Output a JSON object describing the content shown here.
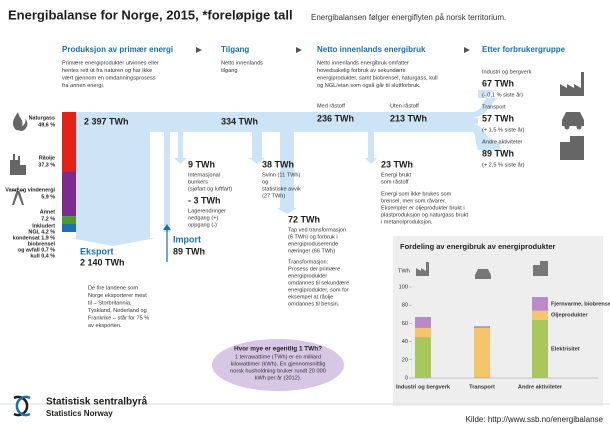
{
  "header": {
    "title": "Energibalanse for Norge, 2015, *foreløpige tall",
    "subtitle": "Energibalansen følger energiflyten på norsk territorium."
  },
  "columns": [
    {
      "title": "Produksjon av primær energi",
      "text": [
        "Primære energiprodukter utvinnes eller",
        "hentes rett ut fra naturen og har ikke",
        "vært gjennom en omdanningsprosess",
        "fra annen energi."
      ]
    },
    {
      "title": "Tilgang",
      "text": [
        "Netto innenlands",
        "tilgang"
      ]
    },
    {
      "title": "Netto innenlands energibruk",
      "text": [
        "Netto innenlands energibruk omfatter",
        "hovedsakelig forbruk av sekundære",
        "energiprodukter, samt biobrensel, naturgass, kull",
        "og NGL/etan som også går til sluttforbruk."
      ]
    },
    {
      "title": "Etter forbrukergruppe"
    }
  ],
  "sources": [
    {
      "name": "Naturgass",
      "value": 49.6,
      "value_label": "49,6 %",
      "color": "#e2231a"
    },
    {
      "name": "Råolje",
      "value": 37.3,
      "value_label": "37,3 %",
      "color": "#7b2a8e"
    },
    {
      "name": "Vann og vindenergi",
      "value": 5.9,
      "value_label": "5,9 %",
      "color": "#4c9a2a"
    },
    {
      "name": "Annet",
      "value": 7.2,
      "value_label": "7,2 %",
      "color": "#1f6fb5"
    }
  ],
  "annet_details": [
    "Inkludert",
    "NGL 4,2 %",
    "kondensat 1,9 %",
    "biobrensel",
    "og avfall 0,7 %",
    "kull 0,4 %"
  ],
  "flows": {
    "production": "2 397 TWh",
    "supply": "334 TWh",
    "with_raw": {
      "label": "Med råstoff",
      "value": "236 TWh"
    },
    "without_raw": {
      "label": "Uten råstoff",
      "value": "213 TWh"
    },
    "bunkers": {
      "value": "9 TWh",
      "text": [
        "Internasjonal",
        "bunkers",
        "(sjøfart og luftfart)"
      ]
    },
    "stock": {
      "value": "- 3 TWh",
      "text": [
        "Lagerendringer",
        "nedgang (+)",
        "oppgang (-)"
      ]
    },
    "losses": {
      "value": "38 TWh",
      "text": [
        "Svinn (11 TWh)",
        "og",
        "statistiske avvik",
        "(27 TWh)"
      ]
    },
    "transformation": {
      "value": "72 TWh",
      "text": [
        "Tap ved transformasjon",
        "(6 TWh) og forbruk i",
        "energiproduserende",
        "næringer (66 TWh)"
      ],
      "note": [
        "Transformasjon:",
        "Prosess der primære",
        "energiprodukter",
        "omdannes til sekundære",
        "energiprodukter, som for",
        "eksempel at råolje",
        "omdannes til bensin."
      ]
    },
    "raw_material": {
      "value": "23 TWh",
      "text": [
        "Energi brukt",
        "som råstoff"
      ],
      "note": [
        "Energi som ikke brukes som",
        "brensel, men som råvarer.",
        "Eksempler er oljeprodukter brukt i",
        "plastproduksjon og naturgass brukt",
        "i metanolproduksjon."
      ]
    },
    "export": {
      "title": "Eksport",
      "value": "2 140 TWh",
      "text": [
        "De fire landene som",
        "Norge eksporterer mest",
        "til – Storbritannia,",
        "Tyskland, Nederland og",
        "Frankrike – står for 75 %",
        "av eksporten."
      ]
    },
    "import": {
      "title": "Import",
      "value": "89 TWh"
    }
  },
  "consumers": [
    {
      "name": "Industri og bergverk",
      "value": "67 TWh",
      "change": "(- 0,1 % siste år)"
    },
    {
      "name": "Transport",
      "value": "57 TWh",
      "change": "(+ 1,5 % siste år)"
    },
    {
      "name": "Andre aktiviteter",
      "value": "89 TWh",
      "change": "(+ 2,5 % siste år)"
    }
  ],
  "chart_data": {
    "type": "bar",
    "stacked": true,
    "title": "Fordeling av energibruk av energiprodukter",
    "y_label": "TWh",
    "categories": [
      "Industri og bergverk",
      "Transport",
      "Andre aktiviteter"
    ],
    "series": [
      {
        "name": "Elektrisitet",
        "color": "#a8c85c",
        "values": [
          45,
          1,
          64
        ]
      },
      {
        "name": "Oljeprodukter",
        "color": "#f5c56b",
        "values": [
          10,
          54,
          10
        ]
      },
      {
        "name": "Fjernvarme, biobrensel og avfall",
        "color": "#b98ac6",
        "values": [
          12,
          2,
          15
        ]
      }
    ],
    "ylim": [
      0,
      100
    ],
    "yticks": [
      0,
      20,
      40,
      60,
      80,
      100
    ]
  },
  "faq": {
    "title": "Hvor mye er egentlig 1 TWh?",
    "text": [
      "1 terrawattime (TWh) er en milliard",
      "kilowattimer (kWh). En gjennomsnittlig",
      "norsk husholdning bruker rundt 20 000",
      "kWh per år (2012)."
    ]
  },
  "footer": {
    "org": "Statistisk sentralbyrå",
    "org_en": "Statistics Norway",
    "source": "Kilde: http://www.ssb.no/energibalanse"
  }
}
